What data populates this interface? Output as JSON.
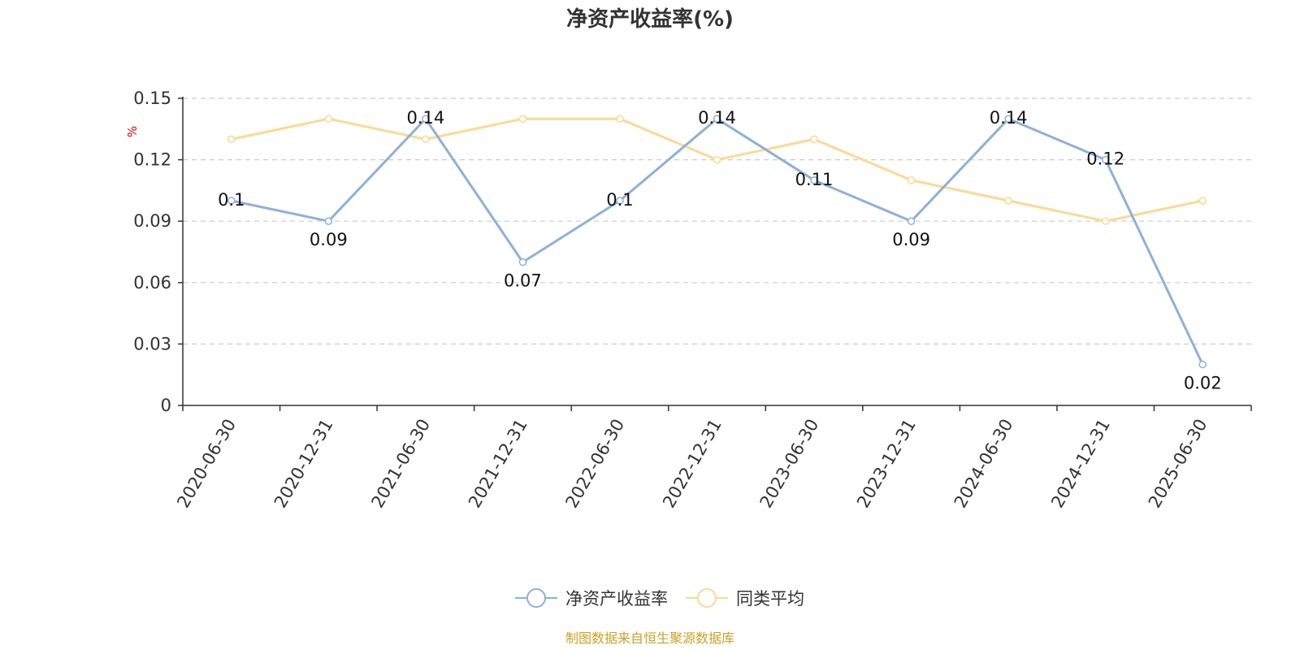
{
  "chart_data": {
    "type": "line",
    "title": "净资产收益率(%)",
    "ylabel": "%",
    "ylim": [
      0,
      0.15
    ],
    "yticks": [
      0,
      0.03,
      0.06,
      0.09,
      0.12,
      0.15
    ],
    "ytick_labels": [
      "0",
      "0.03",
      "0.06",
      "0.09",
      "0.12",
      "0.15"
    ],
    "categories": [
      "2020-06-30",
      "2020-12-31",
      "2021-06-30",
      "2021-12-31",
      "2022-06-30",
      "2022-12-31",
      "2023-06-30",
      "2023-12-31",
      "2024-06-30",
      "2024-12-31",
      "2025-06-30"
    ],
    "grid": true,
    "legend_position": "bottom",
    "series": [
      {
        "name": "净资产收益率",
        "color": "#8eb0da",
        "values": [
          0.1,
          0.09,
          0.14,
          0.07,
          0.1,
          0.14,
          0.11,
          0.09,
          0.14,
          0.12,
          0.02
        ],
        "labels": [
          "0.1",
          "0.09",
          "0.14",
          "0.07",
          "0.1",
          "0.14",
          "0.11",
          "0.09",
          "0.14",
          "0.12",
          "0.02"
        ]
      },
      {
        "name": "同类平均",
        "color": "#fcd994",
        "values": [
          0.13,
          0.14,
          0.13,
          0.14,
          0.14,
          0.12,
          0.13,
          0.11,
          0.1,
          0.09,
          0.1
        ]
      }
    ],
    "source": "制图数据来自恒生聚源数据库"
  }
}
